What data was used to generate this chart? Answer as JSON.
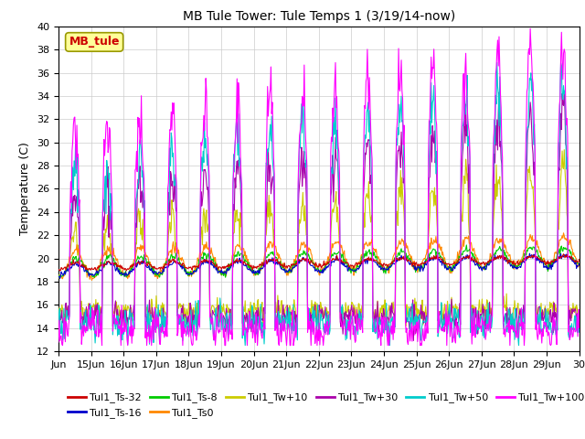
{
  "title": "MB Tule Tower: Tule Temps 1 (3/19/14-now)",
  "ylabel": "Temperature (C)",
  "xlabel_ticks": [
    "Jun",
    "15Jun",
    "16Jun",
    "17Jun",
    "18Jun",
    "19Jun",
    "20Jun",
    "21Jun",
    "22Jun",
    "23Jun",
    "24Jun",
    "25Jun",
    "26Jun",
    "27Jun",
    "28Jun",
    "29Jun",
    "30"
  ],
  "ylim": [
    12,
    40
  ],
  "yticks": [
    12,
    14,
    16,
    18,
    20,
    22,
    24,
    26,
    28,
    30,
    32,
    34,
    36,
    38,
    40
  ],
  "series_colors": {
    "Tul1_Ts-32": "#cc0000",
    "Tul1_Ts-16": "#0000cc",
    "Tul1_Ts-8": "#00cc00",
    "Tul1_Ts0": "#ff8800",
    "Tul1_Tw+10": "#cccc00",
    "Tul1_Tw+30": "#aa00aa",
    "Tul1_Tw+50": "#00cccc",
    "Tul1_Tw+100": "#ff00ff"
  },
  "legend_box_color": "#ffff99",
  "legend_box_text": "MB_tule",
  "legend_box_text_color": "#cc0000",
  "background_color": "#ffffff",
  "grid_color": "#cccccc",
  "figsize": [
    6.4,
    4.8
  ],
  "dpi": 100
}
